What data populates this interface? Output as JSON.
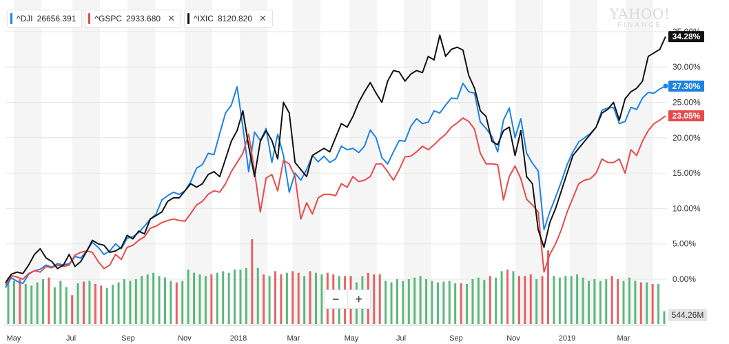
{
  "legend": [
    {
      "symbol": "^DJI",
      "value": "26656.391",
      "color": "#1a83e6",
      "close_icon": "close-icon"
    },
    {
      "symbol": "^GSPC",
      "value": "2933.680",
      "color": "#e84a4a",
      "close_icon": "close-icon"
    },
    {
      "symbol": "^IXIC",
      "value": "8120.820",
      "color": "#111111",
      "close_icon": "close-icon"
    }
  ],
  "watermark": {
    "line1": "YAHOO!",
    "line2": "FINANCE"
  },
  "zoom": {
    "minus": "−",
    "plus": "+"
  },
  "volume_label": "544.26M",
  "colors": {
    "dji": "#1a83e6",
    "gspc": "#e84a4a",
    "ixic": "#111111",
    "vol_up": "#5cb87b",
    "vol_down": "#e36363",
    "band": "#f5f5f5"
  },
  "chart_data": {
    "type": "line",
    "ylim": [
      -3,
      38
    ],
    "yticks": [
      "0.00%",
      "5.00%",
      "10.00%",
      "15.00%",
      "20.00%",
      "25.00%",
      "30.00%",
      "35.00%"
    ],
    "x_labels": [
      "May",
      "Jul",
      "Sep",
      "Nov",
      "2018",
      "Mar",
      "May",
      "Jul",
      "Sep",
      "Nov",
      "2019",
      "Mar"
    ],
    "series": [
      {
        "name": "^DJI",
        "color": "#1a83e6",
        "last_label": "27.30%",
        "values": [
          -1.2,
          0.2,
          -0.3,
          -0.6,
          0.7,
          1.2,
          1.4,
          2.0,
          1.7,
          2.2,
          2.0,
          2.2,
          3.2,
          3.0,
          4.0,
          5.2,
          4.5,
          3.5,
          4.0,
          5.0,
          4.3,
          5.8,
          6.0,
          6.6,
          7.5,
          8.5,
          9.2,
          11.2,
          11.8,
          12.3,
          12.0,
          12.5,
          13.8,
          15.7,
          16.2,
          17.8,
          17.6,
          20.6,
          23.5,
          24.6,
          27.2,
          21.5,
          15.2,
          20.8,
          19.6,
          21.3,
          16.5,
          20.5,
          17.5,
          12.3,
          15.0,
          14.0,
          15.5,
          17.5,
          16.6,
          17.4,
          16.5,
          17.0,
          18.8,
          18.3,
          18.5,
          17.9,
          18.8,
          21.1,
          20.0,
          17.2,
          16.3,
          18.0,
          19.6,
          19.5,
          21.6,
          22.7,
          22.0,
          22.2,
          23.8,
          23.5,
          24.6,
          25.6,
          25.5,
          27.7,
          26.5,
          26.3,
          22.2,
          21.3,
          20.2,
          18.0,
          22.5,
          24.2,
          20.0,
          22.7,
          17.8,
          16.4,
          15.3,
          7.0,
          9.5,
          11.6,
          13.8,
          16.2,
          18.0,
          19.4,
          20.0,
          20.6,
          21.5,
          23.9,
          24.2,
          24.3,
          22.0,
          22.3,
          24.3,
          24.0,
          25.6,
          26.4,
          26.3,
          26.9,
          27.3
        ]
      },
      {
        "name": "^GSPC",
        "color": "#e84a4a",
        "last_label": "23.05%",
        "values": [
          -0.8,
          0.5,
          0.3,
          0.0,
          0.8,
          1.2,
          1.0,
          1.8,
          1.6,
          2.0,
          1.8,
          2.0,
          3.4,
          3.8,
          4.0,
          3.8,
          2.5,
          1.5,
          2.0,
          3.5,
          2.8,
          4.5,
          4.8,
          5.5,
          6.0,
          7.2,
          7.5,
          8.0,
          8.3,
          8.5,
          8.3,
          8.2,
          9.3,
          10.5,
          11.0,
          12.0,
          12.5,
          12.3,
          13.5,
          15.2,
          16.5,
          17.8,
          20.5,
          15.2,
          9.5,
          14.3,
          14.8,
          12.5,
          16.8,
          16.3,
          14.5,
          8.5,
          10.8,
          9.2,
          11.5,
          12.0,
          12.0,
          11.8,
          13.5,
          13.0,
          14.5,
          13.8,
          14.0,
          14.5,
          16.3,
          16.3,
          15.2,
          14.0,
          15.5,
          17.3,
          17.4,
          18.0,
          18.8,
          18.3,
          19.0,
          19.8,
          20.5,
          21.5,
          22.1,
          22.8,
          22.3,
          21.2,
          17.8,
          16.3,
          16.3,
          16.2,
          11.2,
          14.5,
          16.0,
          14.2,
          11.3,
          10.5,
          9.5,
          1.0,
          3.5,
          5.0,
          7.0,
          9.5,
          11.5,
          13.5,
          14.0,
          14.2,
          15.0,
          17.0,
          16.5,
          16.5,
          17.0,
          15.0,
          18.3,
          17.5,
          19.5,
          21.0,
          22.0,
          22.5,
          23.1
        ]
      },
      {
        "name": "^IXIC",
        "color": "#111111",
        "last_label": "34.28%",
        "values": [
          -0.5,
          0.7,
          1.0,
          0.8,
          2.0,
          3.5,
          4.3,
          3.0,
          2.5,
          1.5,
          2.0,
          3.5,
          1.8,
          2.5,
          3.9,
          5.5,
          5.0,
          4.8,
          3.8,
          4.0,
          4.5,
          6.2,
          5.7,
          6.8,
          6.4,
          8.5,
          9.0,
          9.5,
          11.0,
          11.5,
          11.5,
          12.5,
          13.5,
          13.0,
          13.5,
          14.8,
          15.2,
          14.5,
          17.0,
          19.5,
          21.0,
          23.8,
          18.8,
          14.5,
          19.5,
          21.0,
          19.6,
          17.0,
          25.0,
          23.5,
          16.5,
          15.5,
          14.5,
          17.5,
          18.0,
          18.5,
          18.0,
          20.0,
          22.0,
          21.5,
          23.0,
          25.0,
          26.5,
          27.8,
          26.3,
          25.0,
          28.0,
          29.5,
          29.3,
          28.0,
          29.0,
          29.5,
          29.2,
          31.5,
          31.0,
          34.5,
          31.5,
          32.5,
          32.8,
          32.4,
          28.8,
          27.0,
          23.8,
          23.0,
          19.5,
          19.0,
          21.0,
          21.5,
          17.5,
          21.0,
          14.5,
          13.5,
          7.0,
          4.5,
          8.0,
          10.0,
          12.5,
          15.0,
          17.5,
          18.5,
          19.5,
          20.5,
          21.5,
          23.5,
          24.0,
          25.0,
          22.5,
          25.5,
          26.5,
          27.0,
          28.0,
          31.5,
          32.0,
          32.5,
          34.3
        ]
      }
    ],
    "volume": {
      "last_label": "544.26M",
      "max": 560,
      "bars": [
        {
          "v": 290,
          "up": true
        },
        {
          "v": 270,
          "up": true
        },
        {
          "v": 280,
          "up": false
        },
        {
          "v": 250,
          "up": true
        },
        {
          "v": 240,
          "up": true
        },
        {
          "v": 260,
          "up": true
        },
        {
          "v": 280,
          "up": true
        },
        {
          "v": 290,
          "up": false
        },
        {
          "v": 230,
          "up": true
        },
        {
          "v": 270,
          "up": true
        },
        {
          "v": 230,
          "up": true
        },
        {
          "v": 180,
          "up": false
        },
        {
          "v": 255,
          "up": true
        },
        {
          "v": 265,
          "up": false
        },
        {
          "v": 270,
          "up": true
        },
        {
          "v": 250,
          "up": false
        },
        {
          "v": 240,
          "up": false
        },
        {
          "v": 225,
          "up": true
        },
        {
          "v": 245,
          "up": true
        },
        {
          "v": 260,
          "up": true
        },
        {
          "v": 280,
          "up": true
        },
        {
          "v": 270,
          "up": true
        },
        {
          "v": 280,
          "up": true
        },
        {
          "v": 300,
          "up": true
        },
        {
          "v": 310,
          "up": true
        },
        {
          "v": 320,
          "up": true
        },
        {
          "v": 300,
          "up": true
        },
        {
          "v": 290,
          "up": true
        },
        {
          "v": 270,
          "up": true
        },
        {
          "v": 260,
          "up": false
        },
        {
          "v": 270,
          "up": true
        },
        {
          "v": 340,
          "up": true
        },
        {
          "v": 320,
          "up": true
        },
        {
          "v": 310,
          "up": true
        },
        {
          "v": 300,
          "up": true
        },
        {
          "v": 310,
          "up": false
        },
        {
          "v": 320,
          "up": true
        },
        {
          "v": 330,
          "up": true
        },
        {
          "v": 320,
          "up": true
        },
        {
          "v": 340,
          "up": true
        },
        {
          "v": 340,
          "up": true
        },
        {
          "v": 350,
          "up": true
        },
        {
          "v": 530,
          "up": false
        },
        {
          "v": 350,
          "up": true
        },
        {
          "v": 310,
          "up": false
        },
        {
          "v": 300,
          "up": true
        },
        {
          "v": 330,
          "up": false
        },
        {
          "v": 310,
          "up": false
        },
        {
          "v": 320,
          "up": true
        },
        {
          "v": 330,
          "up": false
        },
        {
          "v": 320,
          "up": false
        },
        {
          "v": 300,
          "up": true
        },
        {
          "v": 330,
          "up": false
        },
        {
          "v": 320,
          "up": true
        },
        {
          "v": 310,
          "up": true
        },
        {
          "v": 320,
          "up": false
        },
        {
          "v": 310,
          "up": false
        },
        {
          "v": 300,
          "up": true
        },
        {
          "v": 300,
          "up": false
        },
        {
          "v": 300,
          "up": false
        },
        {
          "v": 260,
          "up": true
        },
        {
          "v": 300,
          "up": true
        },
        {
          "v": 320,
          "up": false
        },
        {
          "v": 310,
          "up": false
        },
        {
          "v": 310,
          "up": false
        },
        {
          "v": 270,
          "up": true
        },
        {
          "v": 260,
          "up": true
        },
        {
          "v": 280,
          "up": true
        },
        {
          "v": 270,
          "up": true
        },
        {
          "v": 280,
          "up": true
        },
        {
          "v": 290,
          "up": true
        },
        {
          "v": 300,
          "up": true
        },
        {
          "v": 280,
          "up": true
        },
        {
          "v": 270,
          "up": true
        },
        {
          "v": 260,
          "up": true
        },
        {
          "v": 265,
          "up": true
        },
        {
          "v": 270,
          "up": true
        },
        {
          "v": 255,
          "up": true
        },
        {
          "v": 255,
          "up": false
        },
        {
          "v": 250,
          "up": true
        },
        {
          "v": 280,
          "up": true
        },
        {
          "v": 290,
          "up": true
        },
        {
          "v": 275,
          "up": true
        },
        {
          "v": 300,
          "up": false
        },
        {
          "v": 290,
          "up": true
        },
        {
          "v": 330,
          "up": true
        },
        {
          "v": 340,
          "up": false
        },
        {
          "v": 330,
          "up": true
        },
        {
          "v": 300,
          "up": false
        },
        {
          "v": 300,
          "up": false
        },
        {
          "v": 310,
          "up": false
        },
        {
          "v": 280,
          "up": true
        },
        {
          "v": 300,
          "up": false
        },
        {
          "v": 460,
          "up": false
        },
        {
          "v": 300,
          "up": true
        },
        {
          "v": 290,
          "up": true
        },
        {
          "v": 300,
          "up": true
        },
        {
          "v": 300,
          "up": true
        },
        {
          "v": 310,
          "up": true
        },
        {
          "v": 290,
          "up": true
        },
        {
          "v": 270,
          "up": true
        },
        {
          "v": 280,
          "up": true
        },
        {
          "v": 270,
          "up": true
        },
        {
          "v": 280,
          "up": true
        },
        {
          "v": 300,
          "up": false
        },
        {
          "v": 280,
          "up": false
        },
        {
          "v": 270,
          "up": true
        },
        {
          "v": 290,
          "up": true
        },
        {
          "v": 270,
          "up": true
        },
        {
          "v": 260,
          "up": false
        },
        {
          "v": 260,
          "up": true
        },
        {
          "v": 250,
          "up": false
        },
        {
          "v": 250,
          "up": true
        },
        {
          "v": 80,
          "up": true
        }
      ]
    }
  }
}
